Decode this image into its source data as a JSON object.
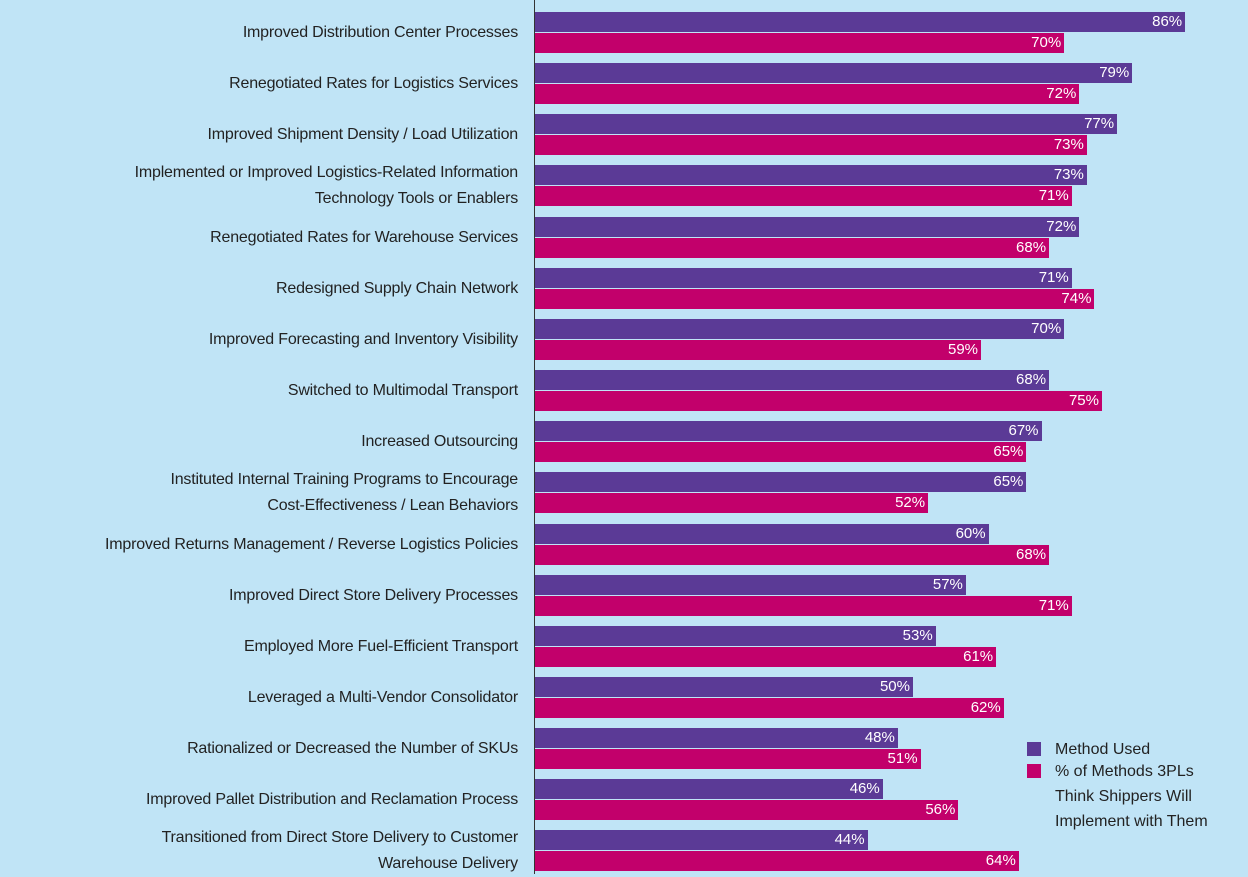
{
  "chart_data": {
    "type": "bar",
    "orientation": "horizontal",
    "categories": [
      "Improved Distribution Center Processes",
      "Renegotiated Rates for Logistics Services",
      "Improved Shipment Density / Load Utilization",
      "Implemented or Improved Logistics-Related Information\nTechnology Tools or Enablers",
      "Renegotiated Rates for Warehouse Services",
      "Redesigned Supply Chain Network",
      "Improved Forecasting and Inventory Visibility",
      "Switched to Multimodal Transport",
      "Increased Outsourcing",
      "Instituted Internal Training Programs to Encourage\nCost-Effectiveness / Lean Behaviors",
      "Improved Returns Management / Reverse Logistics Policies",
      "Improved Direct Store Delivery Processes",
      "Employed More Fuel-Efficient Transport",
      "Leveraged a Multi-Vendor Consolidator",
      "Rationalized or Decreased the Number of SKUs",
      "Improved Pallet Distribution and Reclamation Process",
      "Transitioned from Direct Store Delivery to Customer\nWarehouse  Delivery"
    ],
    "series": [
      {
        "name": "Method Used",
        "color": "#5b3a96",
        "values": [
          86,
          79,
          77,
          73,
          72,
          71,
          70,
          68,
          67,
          65,
          60,
          57,
          53,
          50,
          48,
          46,
          44
        ],
        "value_labels": [
          "86%",
          "79%",
          "77%",
          "73%",
          "72%",
          "71%",
          "70%",
          "68%",
          "67%",
          "65%",
          "60%",
          "57%",
          "53%",
          "50%",
          "48%",
          "46%",
          "44%"
        ]
      },
      {
        "name": "% of Methods 3PLs\nThink Shippers Will\nImplement with Them",
        "color": "#c2006b",
        "values": [
          70,
          72,
          73,
          71,
          68,
          74,
          59,
          75,
          65,
          52,
          68,
          71,
          61,
          62,
          51,
          56,
          64
        ],
        "value_labels": [
          "70%",
          "72%",
          "73%",
          "71%",
          "68%",
          "74%",
          "59%",
          "75%",
          "65%",
          "52%",
          "68%",
          "71%",
          "61%",
          "62%",
          "51%",
          "56%",
          "64%"
        ]
      }
    ],
    "xlim": [
      0,
      100
    ],
    "legend": "lower right"
  }
}
